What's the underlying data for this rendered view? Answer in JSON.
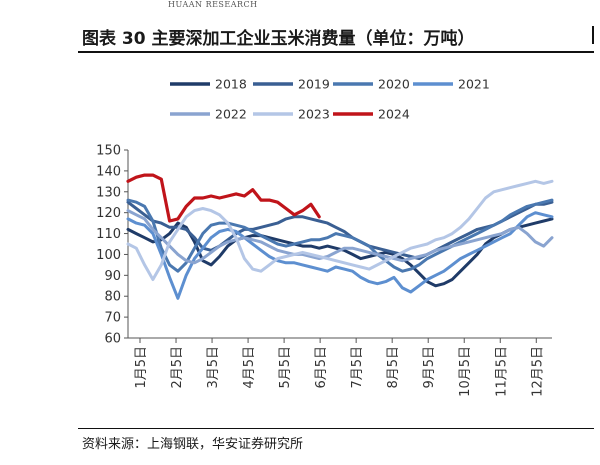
{
  "header": {
    "brand_en": "HUAAN RESEARCH",
    "title": "图表 30 主要深加工企业玉米消费量（单位：万吨）"
  },
  "source": "资料来源：上海钢联，华安证券研究所",
  "chart_data": {
    "type": "line",
    "title": "图表 30 主要深加工企业玉米消费量（单位：万吨）",
    "xlabel": "",
    "ylabel": "",
    "ylim": [
      60,
      150
    ],
    "yticks": [
      60,
      70,
      80,
      90,
      100,
      110,
      120,
      130,
      140,
      150
    ],
    "x_ticks": [
      "1月5日",
      "2月5日",
      "3月5日",
      "4月5日",
      "5月5日",
      "6月5日",
      "7月5日",
      "8月5日",
      "9月5日",
      "10月5日",
      "11月5日",
      "12月5日"
    ],
    "weeks_per_year": 52,
    "legend_position": "top",
    "grid": false,
    "series": [
      {
        "name": "2018",
        "color": "#1f3b68",
        "width": 3,
        "values": [
          112,
          110,
          108,
          106,
          107,
          110,
          115,
          113,
          106,
          97,
          95,
          99,
          104,
          107,
          108,
          109,
          109,
          108,
          107,
          106,
          105,
          104,
          104,
          103,
          104,
          103,
          102,
          100,
          98,
          99,
          100,
          101,
          100,
          98,
          95,
          91,
          87,
          85,
          86,
          88,
          92,
          96,
          100,
          105,
          108,
          110,
          112,
          113,
          114,
          115,
          116,
          117
        ]
      },
      {
        "name": "2019",
        "color": "#3a5f93",
        "width": 3,
        "values": [
          125,
          122,
          119,
          116,
          115,
          113,
          113,
          112,
          108,
          103,
          102,
          104,
          107,
          110,
          112,
          112,
          113,
          114,
          115,
          117,
          118,
          118,
          117,
          116,
          115,
          113,
          111,
          108,
          106,
          104,
          103,
          102,
          101,
          100,
          99,
          98,
          100,
          102,
          104,
          106,
          108,
          110,
          112,
          113,
          114,
          116,
          118,
          120,
          122,
          124,
          124,
          125
        ]
      },
      {
        "name": "2020",
        "color": "#4a78b0",
        "width": 3,
        "values": [
          126,
          125,
          123,
          116,
          103,
          95,
          92,
          96,
          103,
          110,
          114,
          115,
          115,
          114,
          113,
          111,
          109,
          107,
          105,
          104,
          105,
          106,
          107,
          107,
          108,
          110,
          109,
          108,
          106,
          104,
          100,
          97,
          94,
          92,
          93,
          95,
          98,
          100,
          102,
          104,
          106,
          108,
          110,
          112,
          114,
          116,
          119,
          121,
          123,
          124,
          125,
          126
        ]
      },
      {
        "name": "2021",
        "color": "#5d8fd0",
        "width": 3,
        "values": [
          117,
          115,
          114,
          110,
          100,
          89,
          79,
          90,
          98,
          103,
          108,
          111,
          112,
          111,
          108,
          105,
          102,
          99,
          97,
          96,
          96,
          95,
          94,
          93,
          92,
          94,
          93,
          92,
          89,
          87,
          86,
          87,
          89,
          84,
          82,
          85,
          88,
          90,
          92,
          95,
          98,
          100,
          102,
          104,
          106,
          108,
          110,
          114,
          118,
          120,
          119,
          118
        ]
      },
      {
        "name": "2022",
        "color": "#8aa4d0",
        "width": 3,
        "values": [
          121,
          119,
          117,
          112,
          108,
          104,
          100,
          97,
          96,
          98,
          101,
          104,
          106,
          107,
          108,
          107,
          106,
          104,
          102,
          101,
          100,
          100,
          99,
          98,
          99,
          101,
          103,
          103,
          102,
          101,
          100,
          99,
          98,
          97,
          98,
          99,
          100,
          102,
          103,
          104,
          105,
          106,
          107,
          108,
          109,
          110,
          112,
          113,
          110,
          106,
          104,
          108
        ]
      },
      {
        "name": "2023",
        "color": "#b4c6e6",
        "width": 3,
        "values": [
          105,
          103,
          95,
          88,
          95,
          106,
          112,
          118,
          121,
          122,
          121,
          119,
          115,
          108,
          98,
          93,
          92,
          95,
          98,
          99,
          100,
          101,
          100,
          99,
          98,
          97,
          96,
          95,
          94,
          93,
          95,
          97,
          99,
          101,
          103,
          104,
          105,
          107,
          108,
          110,
          113,
          117,
          122,
          127,
          130,
          131,
          132,
          133,
          134,
          135,
          134,
          135
        ]
      },
      {
        "name": "2024",
        "color": "#c0141a",
        "width": 3.2,
        "values": [
          135,
          137,
          138,
          138,
          136,
          116,
          117,
          123,
          127,
          127,
          128,
          127,
          128,
          129,
          128,
          131,
          126,
          126,
          125,
          122,
          119,
          121,
          124,
          118
        ]
      }
    ]
  }
}
